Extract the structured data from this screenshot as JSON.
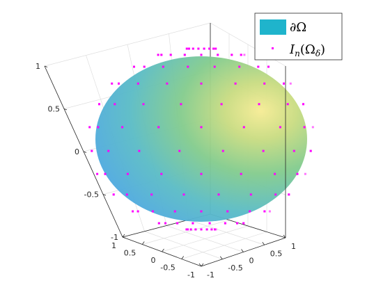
{
  "chart_data": {
    "type": "scatter",
    "title": "",
    "xlabel": "",
    "ylabel": "",
    "zlabel": "",
    "xlim": [
      -1,
      1
    ],
    "ylim": [
      -1,
      1
    ],
    "zlim": [
      -1,
      1
    ],
    "grid": true,
    "legend_placement": "top-right",
    "x_ticks": [
      "1",
      "0.5",
      "0",
      "-0.5",
      "-1"
    ],
    "y_ticks": [
      "-1",
      "-0.5",
      "0",
      "0.5",
      "1"
    ],
    "z_ticks": [
      "1",
      "0.5",
      "0",
      "-0.5",
      "-1"
    ],
    "legend": [
      {
        "label": "∂Ω",
        "kind": "surface",
        "color": "#1fb4cc"
      },
      {
        "label_main": "I",
        "label_sub": "n",
        "label_args": "(Ω",
        "label_sub2": "δ",
        "label_close": ")",
        "kind": "points",
        "color": "#ff00ff"
      }
    ],
    "surface": {
      "shape": "sphere",
      "radius": 1,
      "colormap": [
        "#4ea8f2",
        "#5fc3d0",
        "#9fd28a",
        "#f3e88f"
      ]
    },
    "points": {
      "shape": "sphere-lattice",
      "radius": 1.08,
      "color": "#ff00ff"
    }
  }
}
